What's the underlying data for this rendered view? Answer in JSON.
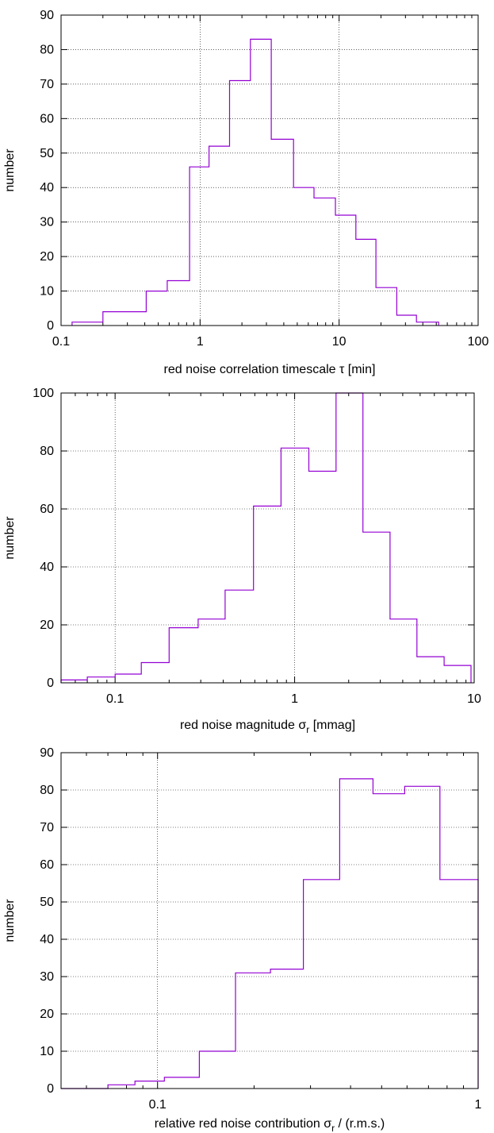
{
  "chart_data": [
    {
      "type": "histogram",
      "xlabel": "red noise correlation timescale τ [min]",
      "xlabel_main": "red noise correlation timescale ",
      "xlabel_symbol": "τ",
      "xlabel_tail": " [min]",
      "ylabel": "number",
      "xscale": "log",
      "xlim": [
        0.1,
        100
      ],
      "ylim": [
        0,
        90
      ],
      "xticks": [
        0.1,
        1,
        10,
        100
      ],
      "xtick_labels": [
        "0.1",
        "1",
        "10",
        "100"
      ],
      "yticks": [
        0,
        10,
        20,
        30,
        40,
        50,
        60,
        70,
        80,
        90
      ],
      "ytick_labels": [
        "0",
        "10",
        "20",
        "30",
        "40",
        "50",
        "60",
        "70",
        "80",
        "90"
      ],
      "grid": "dotted, at major ticks",
      "color": "#9400d3",
      "bin_edges": [
        0.12,
        0.2,
        0.41,
        0.58,
        0.84,
        1.16,
        1.63,
        2.3,
        3.25,
        4.7,
        6.6,
        9.4,
        13.2,
        18.4,
        26,
        36,
        52
      ],
      "counts": [
        1,
        4,
        10,
        13,
        46,
        52,
        71,
        83,
        54,
        40,
        37,
        32,
        25,
        11,
        3,
        1
      ]
    },
    {
      "type": "histogram",
      "xlabel": "red noise magnitude σr [mmag]",
      "xlabel_main": "red noise magnitude ",
      "xlabel_symbol": "σ",
      "xlabel_sub": "r",
      "xlabel_tail": " [mmag]",
      "ylabel": "number",
      "xscale": "log",
      "xlim": [
        0.05,
        10
      ],
      "ylim": [
        0,
        100
      ],
      "xticks": [
        0.1,
        1,
        10
      ],
      "xtick_labels": [
        "0.1",
        "1",
        "10"
      ],
      "yticks": [
        0,
        20,
        40,
        60,
        80,
        100
      ],
      "ytick_labels": [
        "0",
        "20",
        "40",
        "60",
        "80",
        "100"
      ],
      "grid": "dotted, at major ticks",
      "color": "#9400d3",
      "bin_edges": [
        0.05,
        0.07,
        0.1,
        0.14,
        0.2,
        0.29,
        0.41,
        0.59,
        0.84,
        1.2,
        1.7,
        2.4,
        3.4,
        4.8,
        6.8,
        9.6
      ],
      "counts": [
        1,
        2,
        3,
        7,
        19,
        22,
        32,
        61,
        81,
        73,
        100,
        52,
        22,
        9,
        6
      ]
    },
    {
      "type": "histogram",
      "xlabel": "relative red noise contribution σr / (r.m.s.)",
      "xlabel_main": "relative red noise contribution ",
      "xlabel_symbol": "σ",
      "xlabel_sub": "r",
      "xlabel_tail": " / (r.m.s.)",
      "ylabel": "number",
      "xscale": "log",
      "xlim": [
        0.05,
        1
      ],
      "ylim": [
        0,
        90
      ],
      "xticks": [
        0.1,
        1
      ],
      "xtick_labels": [
        "0.1",
        "1"
      ],
      "yticks": [
        0,
        10,
        20,
        30,
        40,
        50,
        60,
        70,
        80,
        90
      ],
      "ytick_labels": [
        "0",
        "10",
        "20",
        "30",
        "40",
        "50",
        "60",
        "70",
        "80",
        "90"
      ],
      "grid": "dotted, at major ticks",
      "color": "#9400d3",
      "bin_edges": [
        0.05,
        0.07,
        0.085,
        0.105,
        0.135,
        0.175,
        0.225,
        0.285,
        0.37,
        0.47,
        0.59,
        0.76,
        1.0
      ],
      "counts": [
        0,
        1,
        2,
        3,
        10,
        31,
        32,
        56,
        83,
        79,
        81,
        56
      ]
    }
  ]
}
